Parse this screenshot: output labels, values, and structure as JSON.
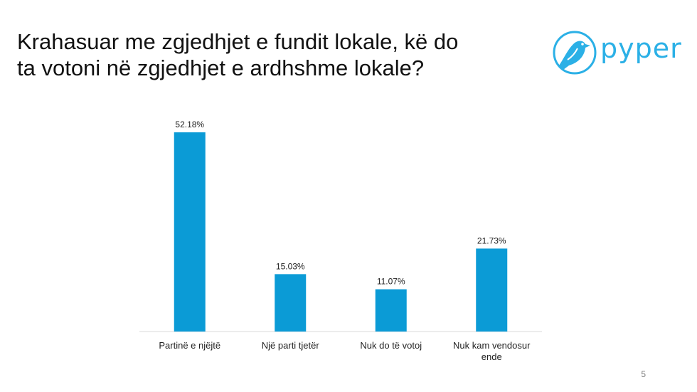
{
  "slide": {
    "title_line1": "Krahasuar me zgjedhjet e fundit lokale, kë do",
    "title_line2": "ta votoni në zgjedhjet e ardhshme lokale?",
    "page_number": "5"
  },
  "logo": {
    "text": "pyper",
    "icon": "bird-icon",
    "color": "#2bb0e6"
  },
  "chart_data": {
    "type": "bar",
    "title": "",
    "xlabel": "",
    "ylabel": "",
    "categories": [
      [
        "Partinë e njëjtë"
      ],
      [
        "Një parti tjetër"
      ],
      [
        "Nuk do të votoj"
      ],
      [
        "Nuk kam vendosur",
        "ende"
      ]
    ],
    "values": [
      52.18,
      15.03,
      11.07,
      21.73
    ],
    "data_labels": [
      "52.18%",
      "15.03%",
      "11.07%",
      "21.73%"
    ],
    "ylim": [
      0,
      52.18
    ],
    "grid": false,
    "legend": "none",
    "bar_color": "#0b9bd6",
    "axis_color": "#d9d9d9"
  }
}
